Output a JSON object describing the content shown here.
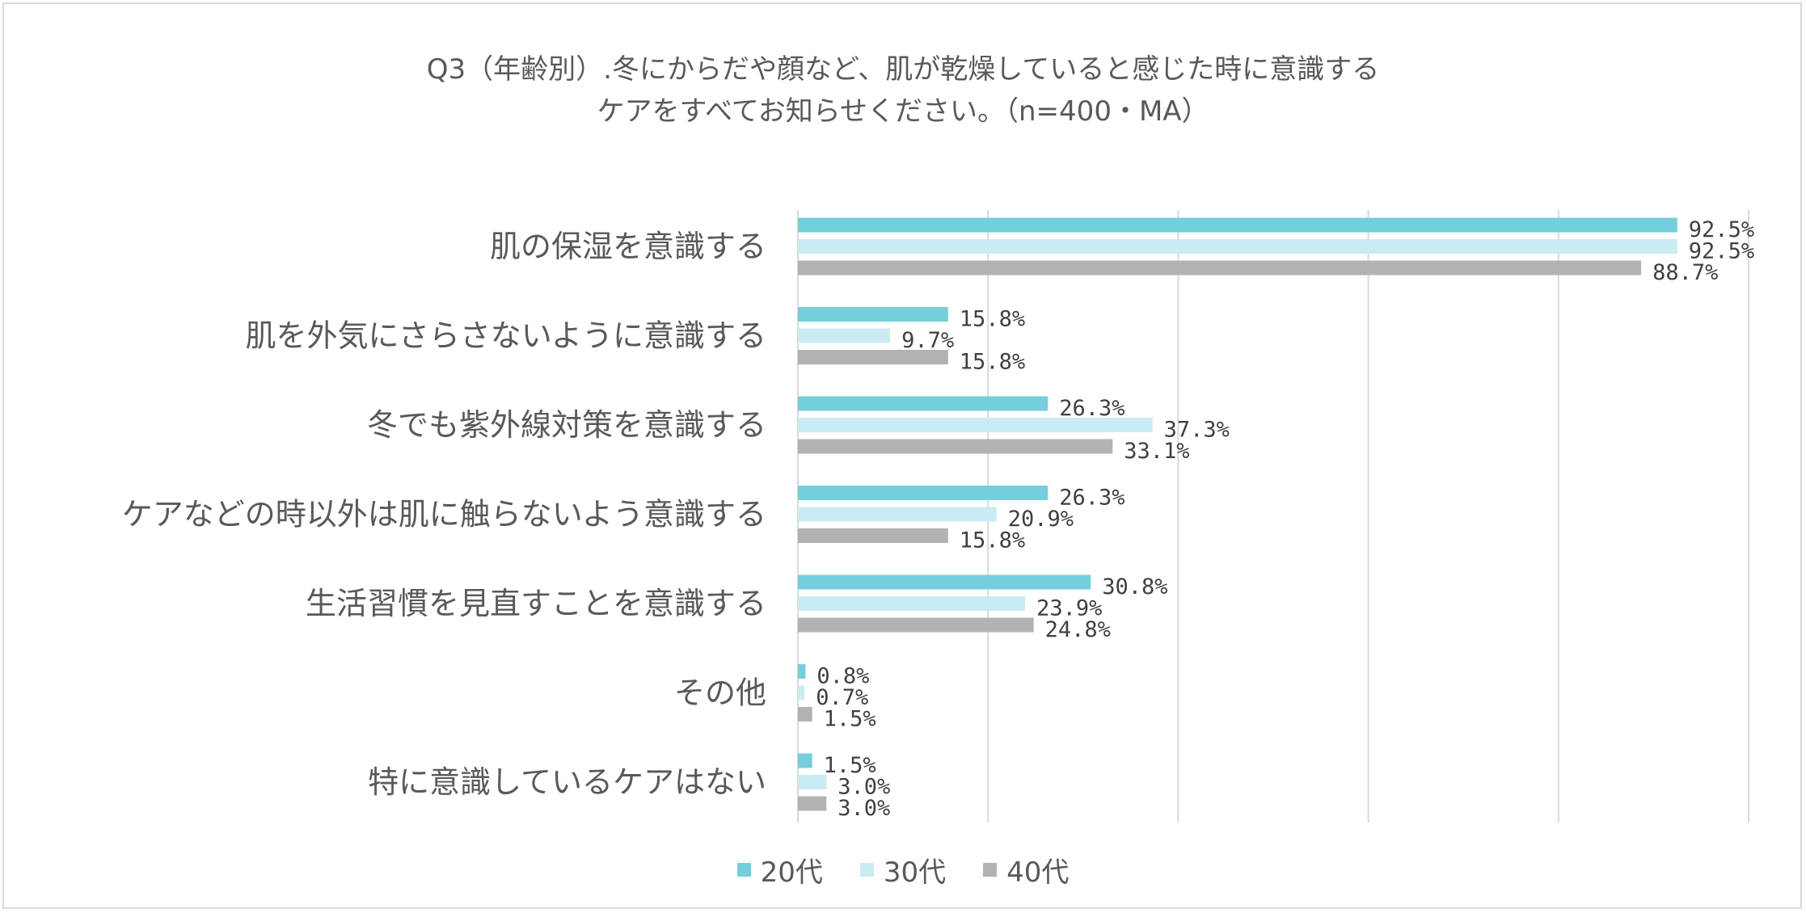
{
  "chart_data": {
    "type": "bar",
    "orientation": "horizontal",
    "title_lines": [
      "Q3（年齢別）.冬にからだや顔など、肌が乾燥していると感じた時に意識する",
      "ケアをすべてお知らせください。（n=400・MA）"
    ],
    "categories": [
      "肌の保湿を意識する",
      "肌を外気にさらさないように意識する",
      "冬でも紫外線対策を意識する",
      "ケアなどの時以外は肌に触らないよう意識する",
      "生活習慣を見直すことを意識する",
      "その他",
      "特に意識しているケアはない"
    ],
    "series": [
      {
        "name": "20代",
        "color": "#74cfdc",
        "values": [
          92.5,
          15.8,
          26.3,
          26.3,
          30.8,
          0.8,
          1.5
        ],
        "labels": [
          "92.5%",
          "15.8%",
          "26.3%",
          "26.3%",
          "30.8%",
          "0.8%",
          "1.5%"
        ]
      },
      {
        "name": "30代",
        "color": "#c9ecf2",
        "values": [
          92.5,
          9.7,
          37.3,
          20.9,
          23.9,
          0.7,
          3.0
        ],
        "labels": [
          "92.5%",
          "9.7%",
          "37.3%",
          "20.9%",
          "23.9%",
          "0.7%",
          "3.0%"
        ]
      },
      {
        "name": "40代",
        "color": "#b2b2b2",
        "values": [
          88.7,
          15.8,
          33.1,
          15.8,
          24.8,
          1.5,
          3.0
        ],
        "labels": [
          "88.7%",
          "15.8%",
          "33.1%",
          "15.8%",
          "24.8%",
          "1.5%",
          "3.0%"
        ]
      }
    ],
    "xlim": [
      0,
      100
    ],
    "gridlines": true,
    "legend_position": "bottom",
    "gridline_color": "#d9d9d9",
    "label_color": "#595959"
  }
}
